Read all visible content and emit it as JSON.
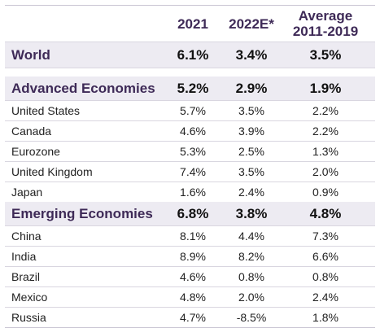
{
  "table": {
    "headers": {
      "col1": "2021",
      "col2": "2022E*",
      "col3_line1": "Average",
      "col3_line2": "2011-2019"
    },
    "world": {
      "label": "World",
      "values": [
        "6.1%",
        "3.4%",
        "3.5%"
      ]
    },
    "advanced": {
      "label": "Advanced Economies",
      "values": [
        "5.2%",
        "2.9%",
        "1.9%"
      ],
      "countries": [
        {
          "label": "United States",
          "values": [
            "5.7%",
            "3.5%",
            "2.2%"
          ]
        },
        {
          "label": "Canada",
          "values": [
            "4.6%",
            "3.9%",
            "2.2%"
          ]
        },
        {
          "label": "Eurozone",
          "values": [
            "5.3%",
            "2.5%",
            "1.3%"
          ]
        },
        {
          "label": "United Kingdom",
          "values": [
            "7.4%",
            "3.5%",
            "2.0%"
          ]
        },
        {
          "label": "Japan",
          "values": [
            "1.6%",
            "2.4%",
            "0.9%"
          ]
        }
      ]
    },
    "emerging": {
      "label": "Emerging Economies",
      "values": [
        "6.8%",
        "3.8%",
        "4.8%"
      ],
      "countries": [
        {
          "label": "China",
          "values": [
            "8.1%",
            "4.4%",
            "7.3%"
          ]
        },
        {
          "label": "India",
          "values": [
            "8.9%",
            "8.2%",
            "6.6%"
          ]
        },
        {
          "label": "Brazil",
          "values": [
            "4.6%",
            "0.8%",
            "0.8%"
          ]
        },
        {
          "label": "Mexico",
          "values": [
            "4.8%",
            "2.0%",
            "2.4%"
          ]
        },
        {
          "label": "Russia",
          "values": [
            "4.7%",
            "-8.5%",
            "1.8%"
          ]
        }
      ]
    }
  }
}
